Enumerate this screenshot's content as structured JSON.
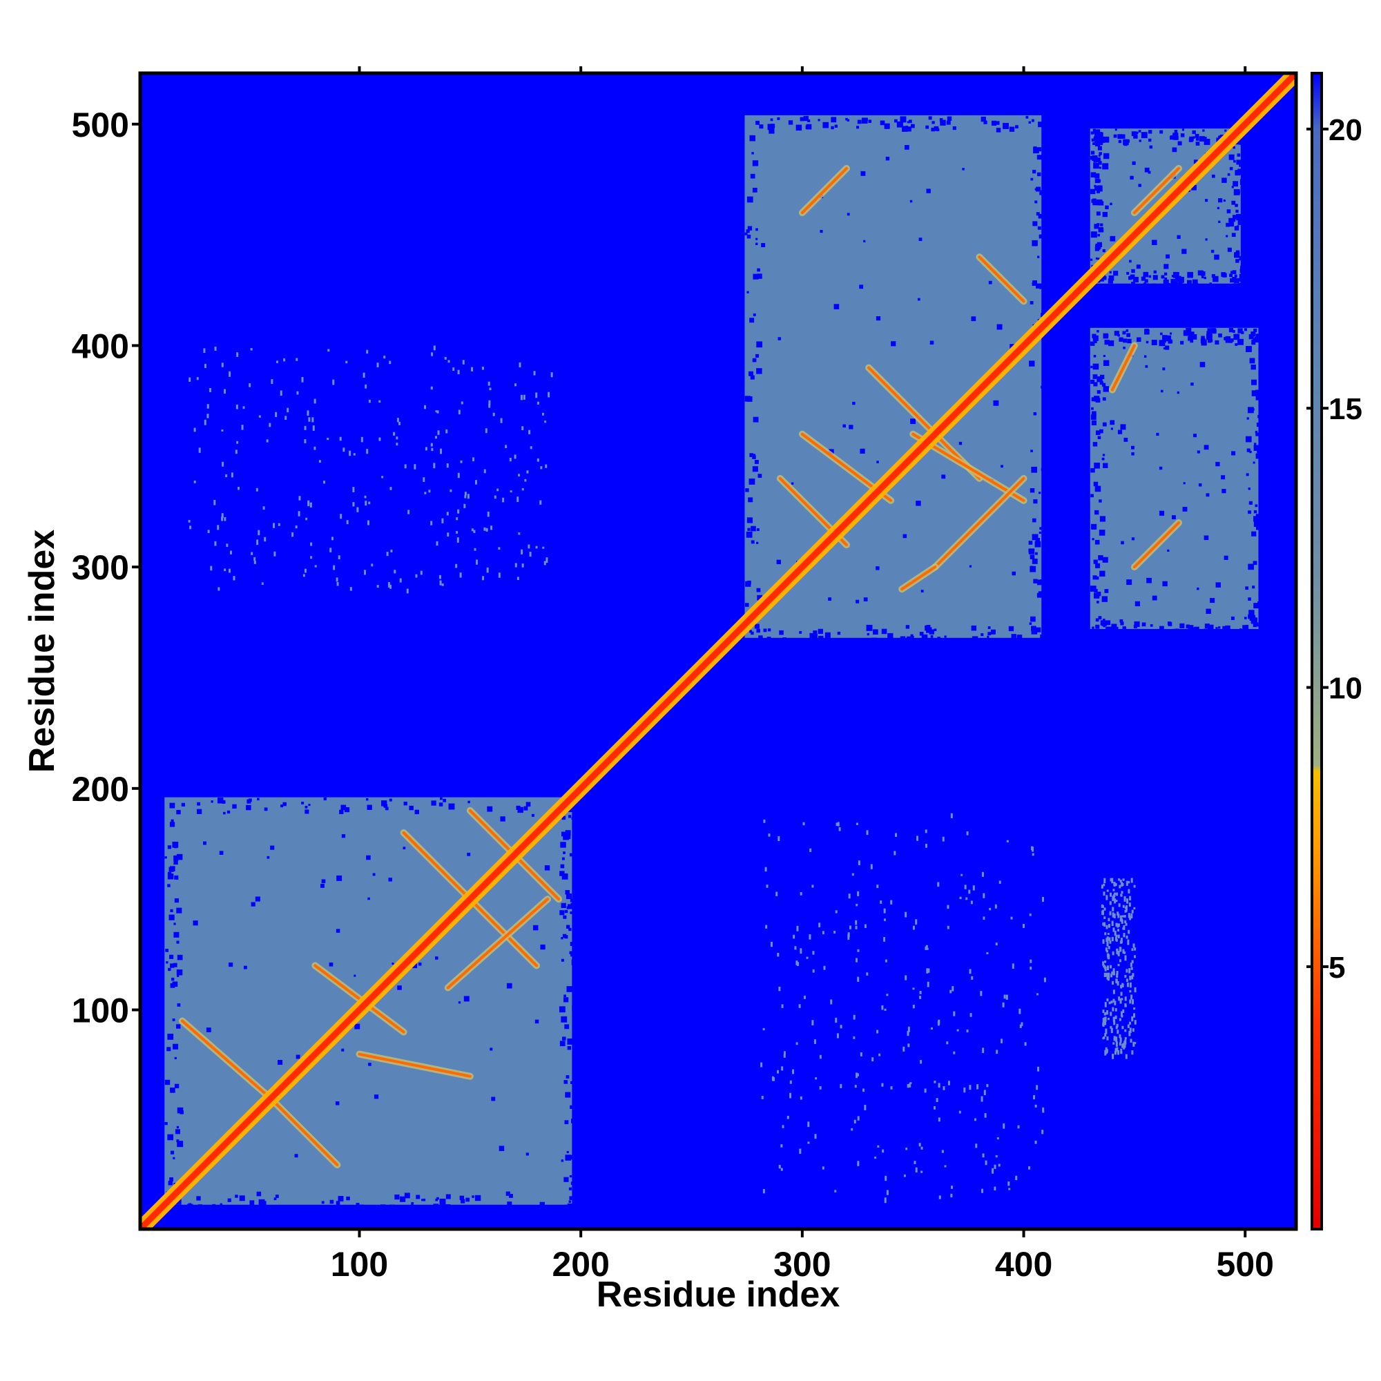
{
  "chart_data": {
    "type": "heatmap",
    "title": "",
    "xlabel": "Residue index",
    "ylabel": "Residue index",
    "xlim": [
      1,
      523
    ],
    "ylim": [
      1,
      523
    ],
    "x_ticks": [
      100,
      200,
      300,
      400,
      500
    ],
    "y_ticks": [
      100,
      200,
      300,
      400,
      500
    ],
    "x_tick_labels": [
      "100",
      "200",
      "300",
      "400",
      "500"
    ],
    "y_tick_labels": [
      "100",
      "200",
      "300",
      "400",
      "500"
    ],
    "colorbar": {
      "range": [
        0.3,
        21
      ],
      "ticks": [
        5,
        10,
        15,
        20
      ],
      "tick_labels": [
        "5",
        "10",
        "15",
        "20"
      ],
      "stops": [
        {
          "value": 0.3,
          "color": "#e60000"
        },
        {
          "value": 4,
          "color": "#ff3300"
        },
        {
          "value": 7,
          "color": "#ff9900"
        },
        {
          "value": 8.5,
          "color": "#f5c000"
        },
        {
          "value": 8.6,
          "color": "#a0b080"
        },
        {
          "value": 12,
          "color": "#6f8fa8"
        },
        {
          "value": 17,
          "color": "#5a80b8"
        },
        {
          "value": 20,
          "color": "#4a6ac0"
        },
        {
          "value": 21,
          "color": "#0000ff"
        }
      ]
    },
    "background_value": 21,
    "background_color": "#0000ff",
    "domain_color": "#5b85b8",
    "contact_color": "#ff6a00",
    "diagonal_color": "#ff2a00",
    "diagonal_halo_color": "#ffb000",
    "domains": [
      {
        "x": [
          12,
          196
        ],
        "y": [
          12,
          196
        ]
      },
      {
        "x": [
          274,
          408
        ],
        "y": [
          268,
          504
        ]
      },
      {
        "x": [
          430,
          506
        ],
        "y": [
          272,
          408
        ]
      },
      {
        "x": [
          430,
          498
        ],
        "y": [
          428,
          498
        ]
      }
    ],
    "diagonal": {
      "from": 1,
      "to": 523
    },
    "contact_segments": [
      {
        "x": [
          20,
          60
        ],
        "y": [
          95,
          60
        ]
      },
      {
        "x": [
          60,
          90
        ],
        "y": [
          60,
          30
        ]
      },
      {
        "x": [
          80,
          120
        ],
        "y": [
          120,
          90
        ]
      },
      {
        "x": [
          100,
          150
        ],
        "y": [
          80,
          70
        ]
      },
      {
        "x": [
          120,
          180
        ],
        "y": [
          180,
          120
        ]
      },
      {
        "x": [
          140,
          185
        ],
        "y": [
          110,
          150
        ]
      },
      {
        "x": [
          150,
          190
        ],
        "y": [
          190,
          150
        ]
      },
      {
        "x": [
          290,
          320
        ],
        "y": [
          340,
          310
        ]
      },
      {
        "x": [
          300,
          340
        ],
        "y": [
          360,
          330
        ]
      },
      {
        "x": [
          330,
          380
        ],
        "y": [
          390,
          340
        ]
      },
      {
        "x": [
          350,
          400
        ],
        "y": [
          360,
          330
        ]
      },
      {
        "x": [
          360,
          400
        ],
        "y": [
          300,
          340
        ]
      },
      {
        "x": [
          380,
          400
        ],
        "y": [
          440,
          420
        ]
      },
      {
        "x": [
          300,
          320
        ],
        "y": [
          460,
          480
        ]
      },
      {
        "x": [
          345,
          360
        ],
        "y": [
          290,
          300
        ]
      },
      {
        "x": [
          440,
          450
        ],
        "y": [
          380,
          400
        ]
      },
      {
        "x": [
          450,
          470
        ],
        "y": [
          300,
          320
        ]
      },
      {
        "x": [
          450,
          470
        ],
        "y": [
          460,
          480
        ]
      }
    ],
    "sparse_regions": [
      {
        "x": [
          20,
          190
        ],
        "y": [
          290,
          400
        ]
      },
      {
        "x": [
          280,
          410
        ],
        "y": [
          15,
          190
        ]
      },
      {
        "x": [
          435,
          450
        ],
        "y": [
          80,
          160
        ]
      }
    ]
  }
}
